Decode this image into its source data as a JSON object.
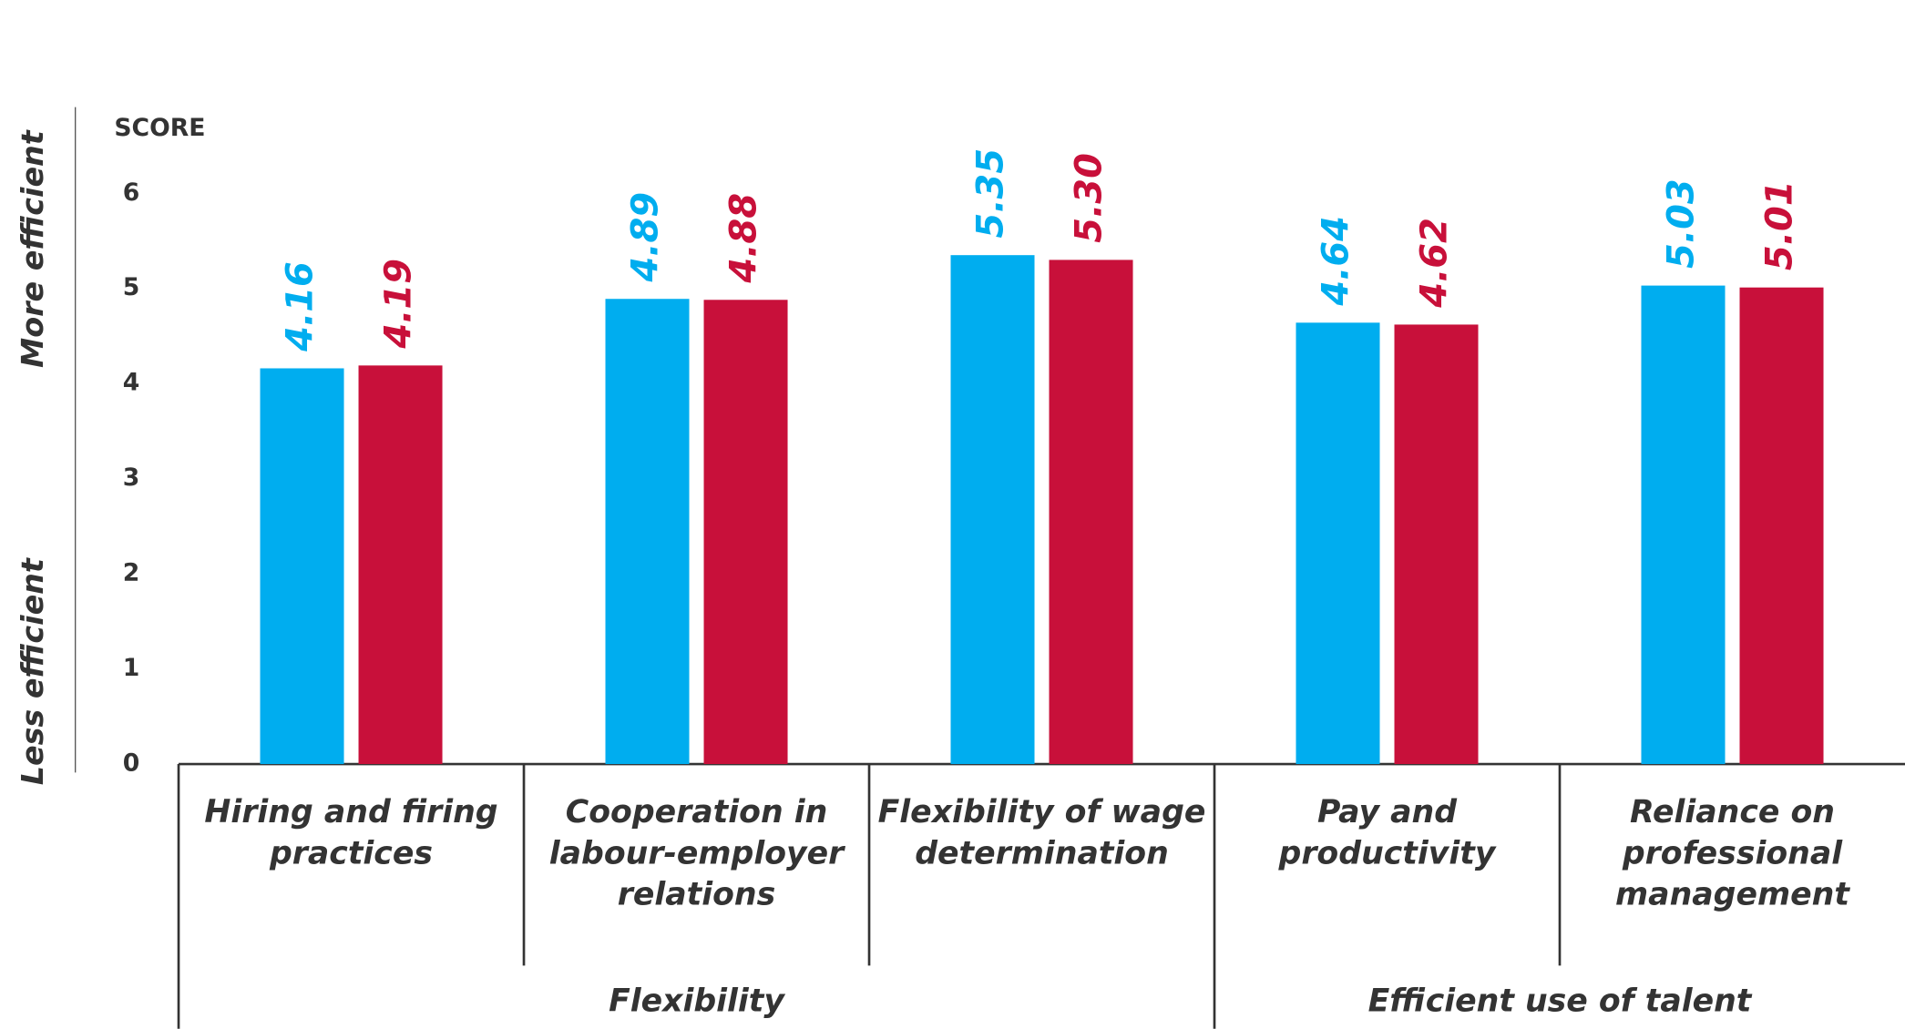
{
  "chart_data": {
    "type": "bar",
    "ylabel": "SCORE",
    "annotations": [
      "More efficient",
      "Less efficient"
    ],
    "categories": [
      "Hiring and firing practices",
      "Cooperation in labour-employer relations",
      "Flexibility of wage determination",
      "Pay and productivity",
      "Reliance on professional management"
    ],
    "groups": [
      {
        "label": "Flexibility",
        "span": 3
      },
      {
        "label": "Efficient use of talent",
        "span": 2
      }
    ],
    "series": [
      {
        "color": "#00adef",
        "values": [
          4.16,
          4.89,
          5.35,
          4.64,
          5.03
        ],
        "value_labels": [
          "4.16",
          "4.89",
          "5.35",
          "4.64",
          "5.03"
        ]
      },
      {
        "color": "#c8103a",
        "values": [
          4.19,
          4.88,
          5.3,
          4.62,
          5.01
        ],
        "value_labels": [
          "4.19",
          "4.88",
          "5.30",
          "4.62",
          "5.01"
        ]
      }
    ],
    "ylim": [
      0,
      6
    ],
    "yticks": [
      0,
      1,
      2,
      3,
      4,
      5,
      6
    ]
  }
}
